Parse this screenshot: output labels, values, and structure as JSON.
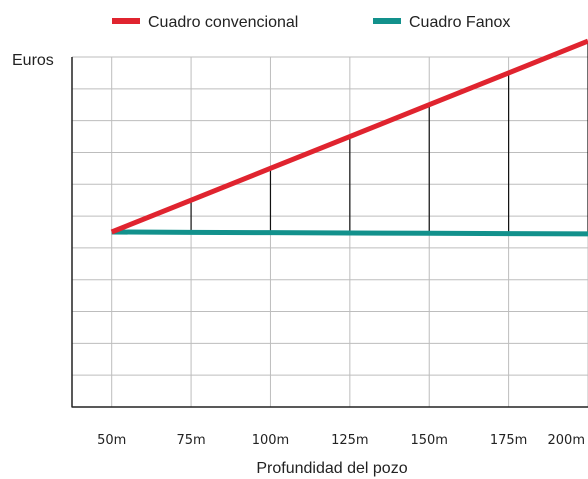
{
  "chart_data": {
    "type": "line",
    "title": "",
    "ylabel": "Euros",
    "xlabel": "Profundidad del pozo",
    "categories": [
      "50m",
      "75m",
      "100m",
      "125m",
      "150m",
      "175m",
      "200m"
    ],
    "x_values": [
      50,
      75,
      100,
      125,
      150,
      175,
      200
    ],
    "xlim": [
      37.5,
      200
    ],
    "ylim": [
      0,
      11
    ],
    "grid": true,
    "legend_position": "top",
    "y_tick_labels_shown": false,
    "series": [
      {
        "name": "Cuadro convencional",
        "color": "#e0242f",
        "values": [
          5.5,
          6.5,
          7.5,
          8.5,
          9.5,
          10.5,
          11.5
        ]
      },
      {
        "name": "Cuadro Fanox",
        "color": "#12918c",
        "values": [
          5.5,
          5.49,
          5.48,
          5.47,
          5.46,
          5.45,
          5.44
        ]
      }
    ],
    "difference_markers": {
      "color": "#111111",
      "at_categories": [
        "75m",
        "100m",
        "125m",
        "150m",
        "175m",
        "200m"
      ]
    }
  }
}
